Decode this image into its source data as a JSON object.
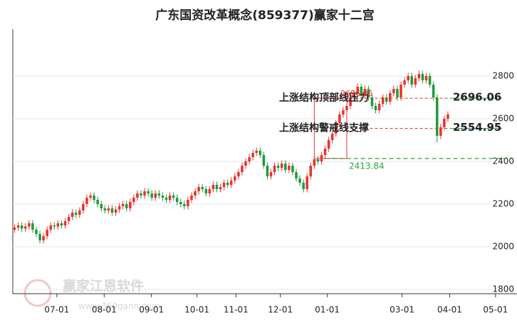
{
  "chart_data": {
    "type": "candlestick",
    "title": "广东国资改革概念(859377)赢家十二宫",
    "x": [
      0,
      1,
      2,
      3,
      4,
      5,
      6,
      7,
      8,
      9,
      10,
      11,
      12,
      13,
      14,
      15,
      16,
      17,
      18,
      19,
      20,
      21,
      22,
      23,
      24,
      25,
      26,
      27,
      28,
      29,
      30,
      31,
      32,
      33,
      34,
      35,
      36,
      37,
      38,
      39,
      40,
      41,
      42,
      43,
      44,
      45,
      46,
      47,
      48,
      49,
      50,
      51,
      52,
      53,
      54,
      55,
      56,
      57,
      58,
      59,
      60,
      61,
      62,
      63,
      64,
      65,
      66,
      67,
      68,
      69,
      70,
      71,
      72,
      73,
      74,
      75,
      76,
      77,
      78,
      79,
      80,
      81,
      82,
      83,
      84,
      85,
      86,
      87,
      88,
      89,
      90,
      91,
      92,
      93,
      94,
      95,
      96,
      97,
      98,
      99,
      100,
      101,
      102,
      103,
      104,
      105,
      106,
      107,
      108,
      109,
      110,
      111,
      112,
      113,
      114,
      115,
      116,
      117,
      118,
      119,
      120
    ],
    "open": [
      2080,
      2090,
      2100,
      2085,
      2095,
      2110,
      2080,
      2060,
      2030,
      2050,
      2080,
      2100,
      2095,
      2110,
      2100,
      2120,
      2140,
      2160,
      2150,
      2170,
      2200,
      2230,
      2240,
      2220,
      2200,
      2180,
      2170,
      2180,
      2160,
      2175,
      2190,
      2200,
      2180,
      2210,
      2230,
      2250,
      2240,
      2260,
      2250,
      2230,
      2250,
      2240,
      2230,
      2220,
      2240,
      2230,
      2210,
      2200,
      2190,
      2220,
      2240,
      2260,
      2280,
      2270,
      2250,
      2270,
      2290,
      2270,
      2280,
      2300,
      2290,
      2310,
      2330,
      2350,
      2380,
      2400,
      2420,
      2440,
      2450,
      2430,
      2380,
      2330,
      2350,
      2380,
      2370,
      2390,
      2360,
      2380,
      2350,
      2320,
      2300,
      2270,
      2330,
      2380,
      2410,
      2400,
      2430,
      2460,
      2500,
      2530,
      2580,
      2620,
      2640,
      2660,
      2700,
      2720,
      2750,
      2710,
      2740,
      2700,
      2660,
      2640,
      2670,
      2700,
      2680,
      2720,
      2740,
      2700,
      2760,
      2780,
      2800,
      2760,
      2790,
      2810,
      2780,
      2800,
      2760,
      2700,
      2520,
      2560,
      2600
    ],
    "high": [
      2105,
      2115,
      2115,
      2110,
      2125,
      2125,
      2095,
      2075,
      2065,
      2095,
      2115,
      2115,
      2125,
      2125,
      2135,
      2155,
      2175,
      2175,
      2185,
      2215,
      2245,
      2255,
      2255,
      2235,
      2215,
      2195,
      2195,
      2195,
      2190,
      2205,
      2215,
      2215,
      2225,
      2245,
      2265,
      2265,
      2275,
      2275,
      2265,
      2265,
      2265,
      2255,
      2245,
      2255,
      2255,
      2245,
      2225,
      2215,
      2235,
      2255,
      2275,
      2295,
      2295,
      2285,
      2285,
      2305,
      2305,
      2295,
      2315,
      2315,
      2325,
      2345,
      2365,
      2395,
      2415,
      2435,
      2455,
      2465,
      2465,
      2445,
      2395,
      2365,
      2395,
      2395,
      2405,
      2405,
      2395,
      2395,
      2365,
      2335,
      2315,
      2345,
      2395,
      2425,
      2425,
      2445,
      2475,
      2515,
      2545,
      2595,
      2635,
      2655,
      2675,
      2715,
      2735,
      2765,
      2765,
      2755,
      2755,
      2715,
      2675,
      2685,
      2715,
      2715,
      2735,
      2755,
      2755,
      2775,
      2795,
      2815,
      2815,
      2805,
      2825,
      2825,
      2815,
      2815,
      2775,
      2715,
      2575,
      2615,
      2635
    ],
    "low": [
      2065,
      2075,
      2070,
      2070,
      2080,
      2065,
      2045,
      2015,
      2015,
      2035,
      2065,
      2080,
      2080,
      2085,
      2085,
      2105,
      2125,
      2135,
      2135,
      2155,
      2185,
      2215,
      2205,
      2185,
      2165,
      2155,
      2155,
      2145,
      2145,
      2160,
      2175,
      2165,
      2165,
      2195,
      2215,
      2225,
      2225,
      2235,
      2215,
      2215,
      2225,
      2215,
      2205,
      2205,
      2215,
      2195,
      2185,
      2175,
      2175,
      2205,
      2225,
      2245,
      2255,
      2235,
      2235,
      2255,
      2255,
      2255,
      2265,
      2275,
      2275,
      2295,
      2315,
      2335,
      2365,
      2385,
      2405,
      2425,
      2415,
      2365,
      2315,
      2315,
      2335,
      2355,
      2355,
      2345,
      2345,
      2335,
      2305,
      2285,
      2255,
      2255,
      2315,
      2365,
      2385,
      2385,
      2415,
      2445,
      2485,
      2515,
      2565,
      2605,
      2625,
      2645,
      2685,
      2705,
      2695,
      2695,
      2685,
      2645,
      2625,
      2625,
      2655,
      2665,
      2665,
      2705,
      2685,
      2685,
      2745,
      2765,
      2745,
      2745,
      2775,
      2765,
      2765,
      2745,
      2685,
      2490,
      2505,
      2545,
      2585
    ],
    "close": [
      2090,
      2100,
      2085,
      2095,
      2110,
      2080,
      2060,
      2030,
      2050,
      2080,
      2100,
      2095,
      2110,
      2100,
      2120,
      2140,
      2160,
      2150,
      2170,
      2200,
      2230,
      2240,
      2220,
      2200,
      2180,
      2170,
      2180,
      2160,
      2175,
      2190,
      2200,
      2180,
      2210,
      2230,
      2250,
      2240,
      2260,
      2250,
      2230,
      2250,
      2240,
      2230,
      2220,
      2240,
      2230,
      2210,
      2200,
      2190,
      2220,
      2240,
      2260,
      2280,
      2270,
      2250,
      2270,
      2290,
      2270,
      2280,
      2300,
      2290,
      2310,
      2330,
      2350,
      2380,
      2400,
      2420,
      2440,
      2450,
      2430,
      2380,
      2330,
      2350,
      2380,
      2370,
      2390,
      2360,
      2380,
      2350,
      2320,
      2300,
      2270,
      2330,
      2380,
      2410,
      2400,
      2430,
      2460,
      2500,
      2530,
      2580,
      2620,
      2640,
      2660,
      2700,
      2720,
      2750,
      2710,
      2740,
      2700,
      2660,
      2640,
      2670,
      2700,
      2680,
      2720,
      2740,
      2700,
      2760,
      2780,
      2800,
      2760,
      2790,
      2810,
      2780,
      2800,
      2760,
      2700,
      2520,
      2560,
      2600,
      2620
    ],
    "up_color": "#e8332e",
    "down_color": "#1f9b3c",
    "xlim": [
      -0.5,
      135
    ],
    "xticks": [
      {
        "value": 11.7,
        "label": "07-01"
      },
      {
        "value": 24.8,
        "label": "08-01"
      },
      {
        "value": 37.9,
        "label": "09-01"
      },
      {
        "value": 50.5,
        "label": "10-01"
      },
      {
        "value": 61.3,
        "label": "11-01"
      },
      {
        "value": 73.6,
        "label": "12-01"
      },
      {
        "value": 86.6,
        "label": "01-01"
      },
      {
        "value": 107.3,
        "label": "03-01"
      },
      {
        "value": 120.5,
        "label": "04-01"
      },
      {
        "value": 133.2,
        "label": "05-01"
      }
    ],
    "ylim": [
      1780,
      3020
    ],
    "yticks": [
      1800,
      2000,
      2200,
      2400,
      2600,
      2800
    ],
    "grid": true,
    "levels": [
      {
        "label": "上涨结构顶部线压力",
        "value": 2696.06,
        "color": "#e8332e"
      },
      {
        "label": "上涨结构警戒线支撑",
        "value": 2554.95,
        "color": "#e8332e"
      }
    ],
    "base_level": {
      "value": 2413.84,
      "color": "#2e9e3e"
    },
    "watermark": {
      "name": "赢家江恩软件",
      "url": "www.360gann.com"
    }
  }
}
